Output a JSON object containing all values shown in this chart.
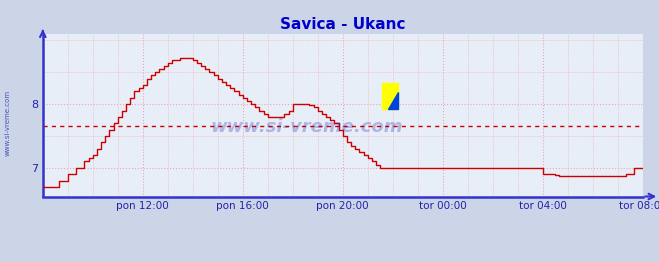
{
  "title": "Savica - Ukanc",
  "title_color": "#0000cc",
  "bg_color": "#ccd5e8",
  "plot_bg_color": "#e8eef8",
  "grid_color": "#e8a8a8",
  "axis_color": "#3333cc",
  "line_color": "#cc0000",
  "dashed_line_y": 7.65,
  "dashed_line_color": "#cc0000",
  "yticks": [
    7,
    8
  ],
  "ytick_labels": [
    "7",
    "8"
  ],
  "ylim": [
    6.55,
    9.1
  ],
  "legend_color": "#cc0000",
  "watermark_text": "www.si-vreme.com",
  "watermark_color": "#2222aa",
  "tick_label_color": "#2222aa",
  "xtick_labels": [
    "pon 12:00",
    "pon 16:00",
    "pon 20:00",
    "tor 00:00",
    "tor 04:00",
    "tor 08:00"
  ],
  "xtick_positions": [
    48,
    96,
    144,
    192,
    240,
    288
  ],
  "xlim_min": 0,
  "xlim_max": 288,
  "x_values": [
    0,
    2,
    4,
    6,
    8,
    10,
    12,
    14,
    16,
    18,
    20,
    22,
    24,
    26,
    28,
    30,
    32,
    34,
    36,
    38,
    40,
    42,
    44,
    46,
    48,
    50,
    52,
    54,
    56,
    58,
    60,
    62,
    64,
    66,
    68,
    70,
    72,
    74,
    76,
    78,
    80,
    82,
    84,
    86,
    88,
    90,
    92,
    94,
    96,
    98,
    100,
    102,
    104,
    106,
    108,
    110,
    112,
    114,
    116,
    118,
    120,
    122,
    124,
    126,
    128,
    130,
    132,
    134,
    136,
    138,
    140,
    142,
    144,
    146,
    148,
    150,
    152,
    154,
    156,
    158,
    160,
    162,
    164,
    166,
    168,
    170,
    172,
    174,
    176,
    178,
    180,
    182,
    184,
    186,
    188,
    190,
    192,
    194,
    196,
    198,
    200,
    202,
    204,
    206,
    208,
    210,
    212,
    214,
    216,
    218,
    220,
    222,
    224,
    226,
    228,
    230,
    232,
    234,
    236,
    238,
    240,
    242,
    244,
    246,
    248,
    250,
    252,
    254,
    256,
    258,
    260,
    262,
    264,
    266,
    268,
    270,
    272,
    274,
    276,
    278,
    280,
    282,
    284,
    286,
    288
  ],
  "y_values": [
    6.7,
    6.7,
    6.7,
    6.7,
    6.8,
    6.8,
    6.9,
    6.9,
    7.0,
    7.0,
    7.1,
    7.15,
    7.2,
    7.3,
    7.4,
    7.5,
    7.6,
    7.7,
    7.8,
    7.9,
    8.0,
    8.1,
    8.2,
    8.25,
    8.3,
    8.4,
    8.45,
    8.5,
    8.55,
    8.6,
    8.65,
    8.7,
    8.7,
    8.72,
    8.73,
    8.72,
    8.7,
    8.65,
    8.6,
    8.55,
    8.5,
    8.45,
    8.4,
    8.35,
    8.3,
    8.25,
    8.2,
    8.15,
    8.1,
    8.05,
    8.0,
    7.95,
    7.9,
    7.85,
    7.8,
    7.8,
    7.8,
    7.8,
    7.85,
    7.9,
    8.0,
    8.0,
    8.0,
    8.0,
    7.98,
    7.95,
    7.9,
    7.85,
    7.8,
    7.75,
    7.7,
    7.6,
    7.5,
    7.4,
    7.35,
    7.3,
    7.25,
    7.2,
    7.15,
    7.1,
    7.05,
    7.0,
    7.0,
    7.0,
    7.0,
    7.0,
    7.0,
    7.0,
    7.0,
    7.0,
    7.0,
    7.0,
    7.0,
    7.0,
    7.0,
    7.0,
    7.0,
    7.0,
    7.0,
    7.0,
    7.0,
    7.0,
    7.0,
    7.0,
    7.0,
    7.0,
    7.0,
    7.0,
    7.0,
    7.0,
    7.0,
    7.0,
    7.0,
    7.0,
    7.0,
    7.0,
    7.0,
    7.0,
    7.0,
    7.0,
    6.9,
    6.9,
    6.9,
    6.88,
    6.87,
    6.87,
    6.87,
    6.87,
    6.87,
    6.87,
    6.87,
    6.87,
    6.87,
    6.87,
    6.87,
    6.87,
    6.87,
    6.87,
    6.87,
    6.87,
    6.9,
    6.9,
    7.0,
    7.0,
    7.0
  ]
}
